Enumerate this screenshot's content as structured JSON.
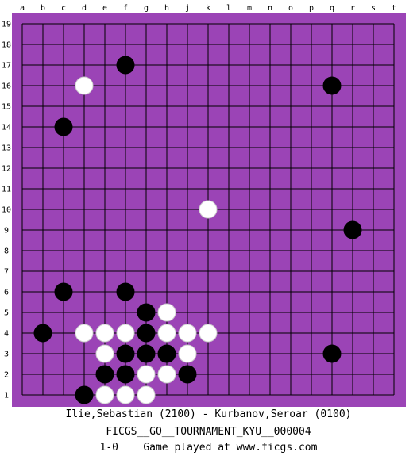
{
  "board": {
    "size": 19,
    "column_labels": [
      "a",
      "b",
      "c",
      "d",
      "e",
      "f",
      "g",
      "h",
      "j",
      "k",
      "l",
      "m",
      "n",
      "o",
      "p",
      "q",
      "r",
      "s",
      "t"
    ],
    "row_labels": [
      "19",
      "18",
      "17",
      "16",
      "15",
      "14",
      "13",
      "12",
      "11",
      "10",
      "9",
      "8",
      "7",
      "6",
      "5",
      "4",
      "3",
      "2",
      "1"
    ],
    "colors": {
      "board": "#9b44b6",
      "grid": "#000000",
      "black_stone": "#000000",
      "white_stone": "#ffffff"
    },
    "stones": {
      "black": [
        {
          "col": "f",
          "row": 17
        },
        {
          "col": "q",
          "row": 16
        },
        {
          "col": "c",
          "row": 14
        },
        {
          "col": "r",
          "row": 9
        },
        {
          "col": "c",
          "row": 6
        },
        {
          "col": "f",
          "row": 6
        },
        {
          "col": "g",
          "row": 5
        },
        {
          "col": "b",
          "row": 4
        },
        {
          "col": "g",
          "row": 4
        },
        {
          "col": "f",
          "row": 3
        },
        {
          "col": "g",
          "row": 3
        },
        {
          "col": "h",
          "row": 3
        },
        {
          "col": "q",
          "row": 3
        },
        {
          "col": "e",
          "row": 2
        },
        {
          "col": "f",
          "row": 2
        },
        {
          "col": "j",
          "row": 2
        },
        {
          "col": "d",
          "row": 1
        }
      ],
      "white": [
        {
          "col": "d",
          "row": 16
        },
        {
          "col": "k",
          "row": 10
        },
        {
          "col": "h",
          "row": 5
        },
        {
          "col": "d",
          "row": 4
        },
        {
          "col": "e",
          "row": 4
        },
        {
          "col": "f",
          "row": 4
        },
        {
          "col": "h",
          "row": 4
        },
        {
          "col": "j",
          "row": 4
        },
        {
          "col": "k",
          "row": 4
        },
        {
          "col": "e",
          "row": 3
        },
        {
          "col": "j",
          "row": 3
        },
        {
          "col": "g",
          "row": 2
        },
        {
          "col": "h",
          "row": 2
        },
        {
          "col": "e",
          "row": 1
        },
        {
          "col": "f",
          "row": 1
        },
        {
          "col": "g",
          "row": 1
        }
      ]
    }
  },
  "footer": {
    "players": "Ilie,Sebastian (2100) - Kurbanov,Seroar (0100)",
    "event": "FICGS__GO__TOURNAMENT_KYU__000004",
    "result": "1-0    Game played at www.ficgs.com"
  }
}
